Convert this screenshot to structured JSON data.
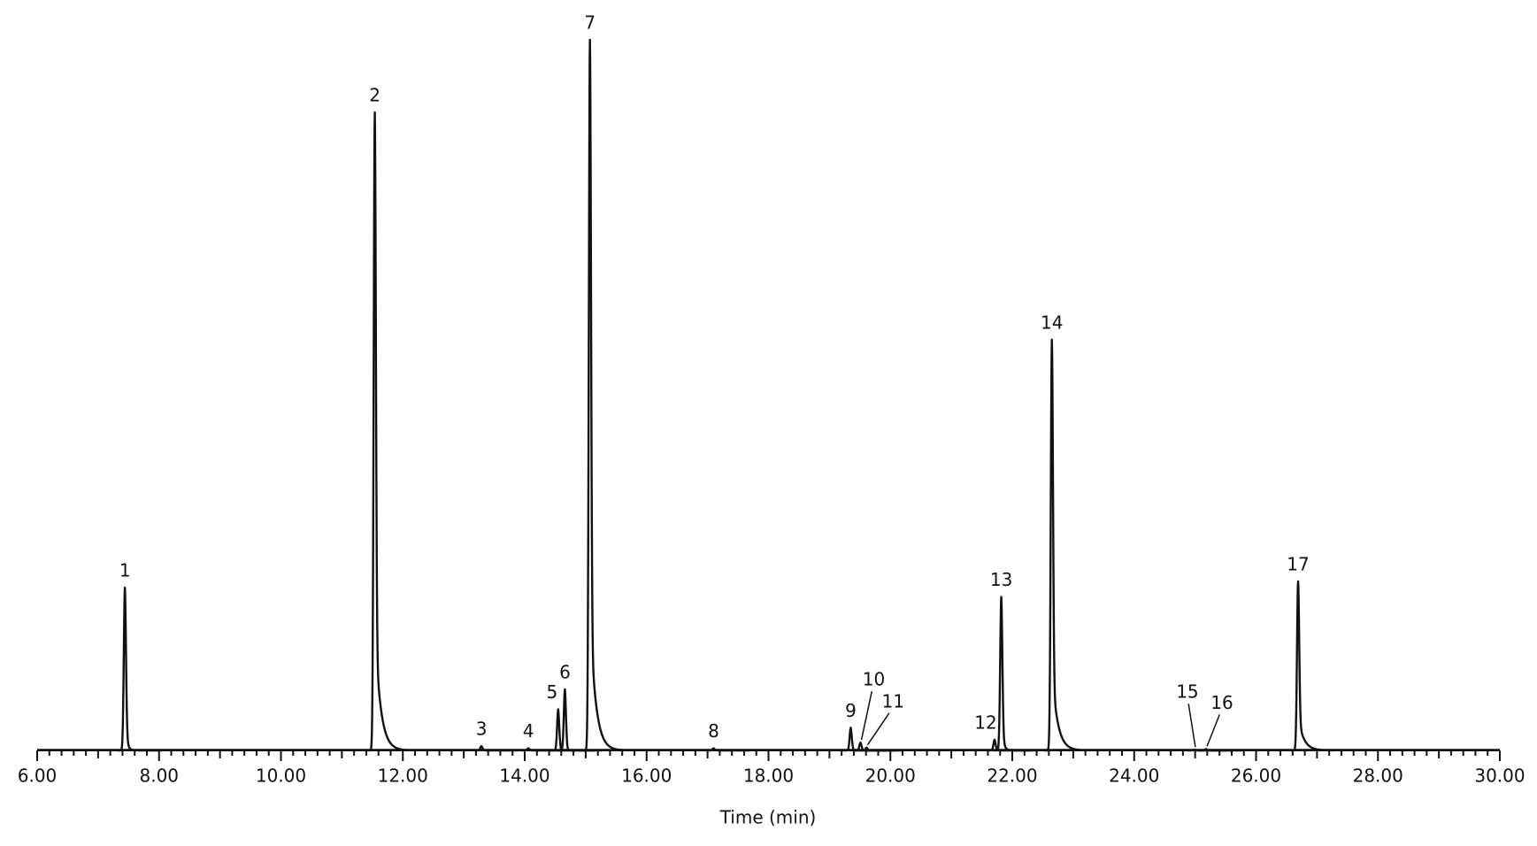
{
  "chart_data": {
    "type": "chromatogram",
    "x_label": "Time (min)",
    "xlim": [
      6,
      30
    ],
    "xticks": [
      {
        "value": 6,
        "label": "6.00"
      },
      {
        "value": 8,
        "label": "8.00"
      },
      {
        "value": 10,
        "label": "10.00"
      },
      {
        "value": 12,
        "label": "12.00"
      },
      {
        "value": 14,
        "label": "14.00"
      },
      {
        "value": 16,
        "label": "16.00"
      },
      {
        "value": 18,
        "label": "18.00"
      },
      {
        "value": 20,
        "label": "20.00"
      },
      {
        "value": 22,
        "label": "22.00"
      },
      {
        "value": 24,
        "label": "24.00"
      },
      {
        "value": 26,
        "label": "26.00"
      },
      {
        "value": 28,
        "label": "28.00"
      },
      {
        "value": 30,
        "label": "30.00"
      }
    ],
    "ylim": [
      0,
      100
    ],
    "color": "#111111",
    "peak_labels": [
      "1",
      "2",
      "3",
      "4",
      "5",
      "6",
      "7",
      "8",
      "9",
      "10",
      "11",
      "12",
      "13",
      "14",
      "15",
      "16",
      "17"
    ],
    "x": [
      7.44,
      11.54,
      13.29,
      14.06,
      14.55,
      14.66,
      15.07,
      17.1,
      19.35,
      19.51,
      19.61,
      21.71,
      21.82,
      22.65,
      24.99,
      25.18,
      26.69
    ],
    "values": [
      22.9,
      89.8,
      0.6,
      0.3,
      5.8,
      8.6,
      100,
      0.3,
      3.2,
      1.1,
      0.4,
      1.5,
      21.6,
      57.8,
      0.1,
      0.2,
      23.8
    ]
  }
}
